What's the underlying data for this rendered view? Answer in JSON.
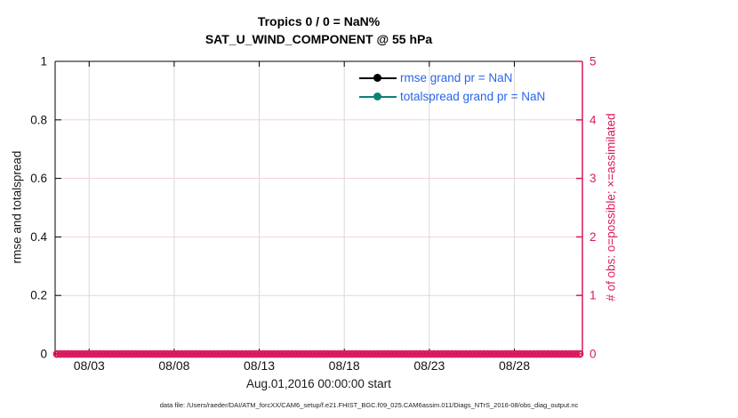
{
  "figure": {
    "title_line1": "Tropics 0 / 0 = NaN%",
    "title_line2": "SAT_U_WIND_COMPONENT @ 55 hPa",
    "footer": "data file: /Users/raeder/DAI/ATM_forcXX/CAM6_setup/f.e21.FHIST_BGC.f09_025.CAM6assim.011/Diags_NTrS_2016-08/obs_diag_output.nc"
  },
  "legend": {
    "text_color": "#2A66E8",
    "items": [
      {
        "name": "rmse",
        "label": "rmse grand pr = NaN",
        "color": "#000000"
      },
      {
        "name": "totalspread",
        "label": "totalspread grand pr = NaN",
        "color": "#0E8177"
      }
    ]
  },
  "chart_data": {
    "type": "line",
    "title": "Tropics 0 / 0 = NaN%",
    "subtitle": "SAT_U_WIND_COMPONENT @ 55 hPa",
    "xlabel": "Aug.01,2016 00:00:00 start",
    "ylabel_left": "rmse and totalspread",
    "ylabel_right": "# of obs: o=possible; ×=assimilated",
    "x_axis": {
      "start_label": "Aug.01,2016 00:00:00 start",
      "domain_days": [
        0,
        31
      ],
      "tick_days": [
        2,
        7,
        12,
        17,
        22,
        27
      ],
      "tick_labels": [
        "08/03",
        "08/08",
        "08/13",
        "08/18",
        "08/23",
        "08/28"
      ]
    },
    "y_left": {
      "range": [
        0,
        1
      ],
      "ticks": [
        0,
        0.2,
        0.4,
        0.6,
        0.8,
        1
      ],
      "tick_labels": [
        "0",
        "0.2",
        "0.4",
        "0.6",
        "0.8",
        "1"
      ]
    },
    "y_right": {
      "range": [
        0,
        5
      ],
      "ticks": [
        0,
        1,
        2,
        3,
        4,
        5
      ],
      "tick_labels": [
        "0",
        "1",
        "2",
        "3",
        "4",
        "5"
      ]
    },
    "series": [
      {
        "name": "rmse",
        "grand_pr": "NaN",
        "color": "#000000",
        "x": [],
        "y": []
      },
      {
        "name": "totalspread",
        "grand_pr": "NaN",
        "color": "#0E8177",
        "x": [],
        "y": []
      }
    ],
    "obs_markers": {
      "note": "o=possible and x=assimilated markers plotted at count 0 across every time bin",
      "value": 0,
      "color": "#DA1A5F",
      "marker_step_px": 4
    },
    "grid": {
      "vertical_color": "#D9D9D9",
      "horizontal_color": "#F6D0DC"
    },
    "axis_colors": {
      "left": "#000000",
      "right": "#DA1A5F",
      "tick_label": "#111111"
    }
  }
}
